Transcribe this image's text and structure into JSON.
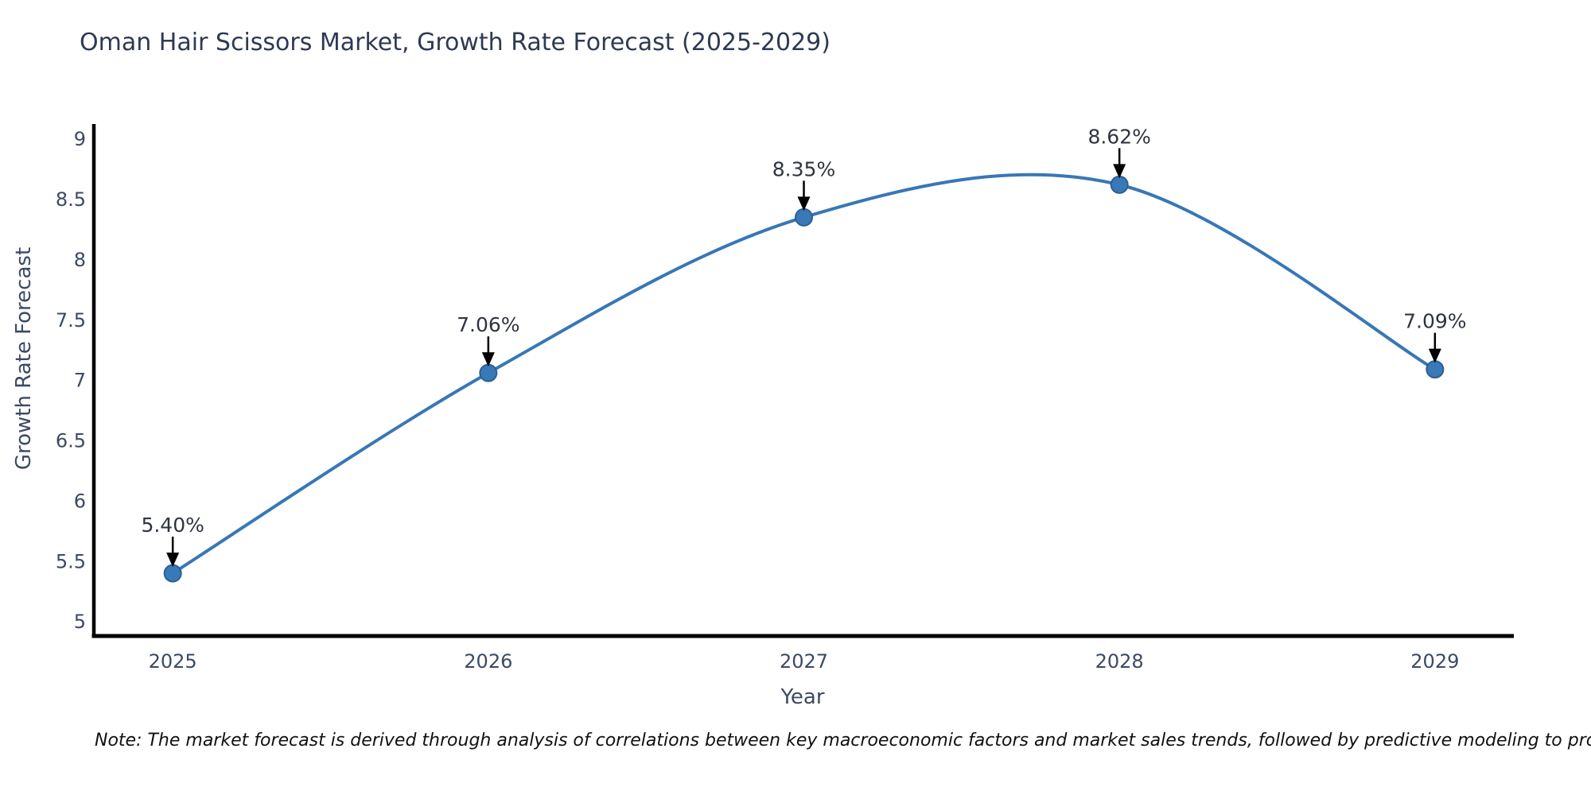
{
  "figure": {
    "note": "Note: The market forecast is derived through analysis of correlations between key macroeconomic factors and market sales trends, followed by predictive modeling to project future sales"
  },
  "chart_data": {
    "type": "line",
    "title": "Oman Hair Scissors Market, Growth Rate Forecast (2025-2029)",
    "xlabel": "Year",
    "ylabel": "Growth Rate Forecast",
    "x": [
      2025,
      2026,
      2027,
      2028,
      2029
    ],
    "series": [
      {
        "name": "Growth Rate Forecast",
        "values": [
          5.4,
          7.06,
          8.35,
          8.62,
          7.09
        ],
        "point_labels": [
          "5.40%",
          "7.06%",
          "8.35%",
          "8.62%",
          "7.09%"
        ]
      }
    ],
    "yticks": [
      5,
      5.5,
      6,
      6.5,
      7,
      7.5,
      8,
      8.5,
      9
    ],
    "ytick_labels": [
      "5",
      "5.5",
      "6",
      "6.5",
      "7",
      "7.5",
      "8",
      "8.5",
      "9"
    ],
    "xtick_labels": [
      "2025",
      "2026",
      "2027",
      "2028",
      "2029"
    ],
    "ylim": [
      4.88,
      9.11
    ],
    "xlim": [
      2024.75,
      2029.25
    ],
    "grid": false,
    "legend": "none",
    "line_shape": "spline",
    "annotation_style": "arrow-down-to-point",
    "colors": {
      "line": "#3877b5",
      "marker": "#3a79b7",
      "marker_edge": "#2a6095",
      "axis": "#000000",
      "tick_text": "#3b4a63",
      "axis_title_text": "#3b4a63",
      "chart_title_text": "#2e3a52",
      "annotation_text": "#2e3440",
      "arrow": "#000000",
      "note_text": "#111111",
      "background": "#ffffff"
    }
  }
}
